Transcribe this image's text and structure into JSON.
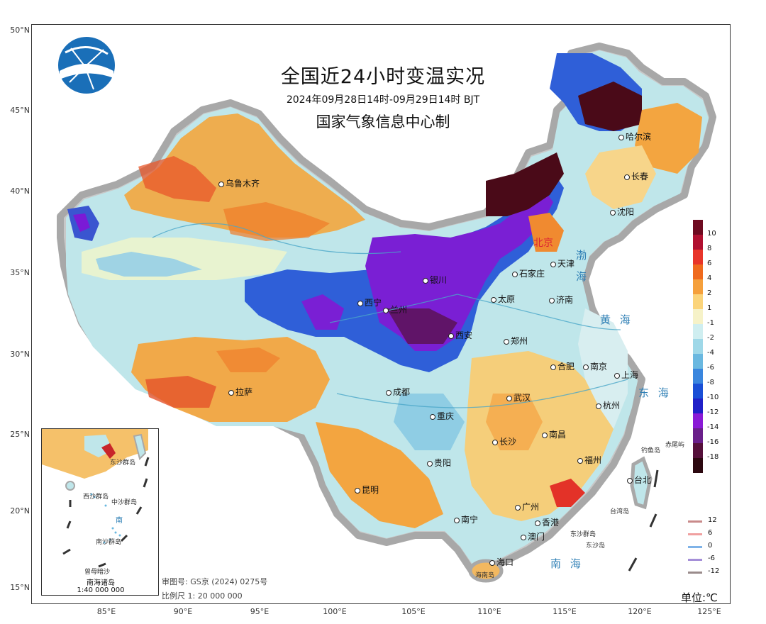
{
  "title": "全国近24小时变温实况",
  "subtitle": "2024年09月28日14时-09月29日14时  BJT",
  "issuer": "国家气象信息中心制",
  "unit_label": "单位:℃",
  "approval_number": "审图号: GS京 (2024) 0275号",
  "scale_text": "比例尺 1: 20 000 000",
  "inset": {
    "title": "南海诸岛",
    "scale": "1:40 000 000",
    "labels": [
      "东沙群岛",
      "西沙群岛",
      "中沙群岛",
      "南沙群岛",
      "曾母暗沙",
      "南"
    ]
  },
  "latitude_labels": [
    "50°N",
    "45°N",
    "40°N",
    "35°N",
    "30°N",
    "25°N",
    "20°N",
    "15°N"
  ],
  "longitude_labels": [
    "85°E",
    "90°E",
    "95°E",
    "100°E",
    "105°E",
    "110°E",
    "115°E",
    "120°E",
    "125°E"
  ],
  "cities": [
    "乌鲁木齐",
    "哈尔滨",
    "长春",
    "沈阳",
    "北京",
    "天津",
    "石家庄",
    "太原",
    "济南",
    "西宁",
    "银川",
    "兰州",
    "西安",
    "郑州",
    "合肥",
    "南京",
    "上海",
    "杭州",
    "武汉",
    "成都",
    "重庆",
    "拉萨",
    "长沙",
    "南昌",
    "贵阳",
    "福州",
    "台北",
    "昆明",
    "南宁",
    "广州",
    "香港",
    "澳门",
    "海口"
  ],
  "seas": [
    "渤",
    "海",
    "黄  海",
    "东  海",
    "南  海"
  ],
  "islands": [
    "钓鱼岛",
    "赤尾屿",
    "台湾岛",
    "东沙群岛",
    "东沙岛",
    "海南岛"
  ],
  "colorbar": {
    "labels": [
      "10",
      "8",
      "6",
      "4",
      "2",
      "1",
      "-1",
      "-2",
      "-4",
      "-6",
      "-8",
      "-10",
      "-12",
      "-14",
      "-16",
      "-18"
    ],
    "colors": [
      "#6e0a20",
      "#b01030",
      "#e8352a",
      "#ef6a1e",
      "#f5a03c",
      "#fbd47a",
      "#f6f2c8",
      "#cfeef0",
      "#9fd8e8",
      "#6ab8e0",
      "#3a86de",
      "#1a4fd6",
      "#2020c8",
      "#8a1ad6",
      "#6a1f8a",
      "#55103a",
      "#2c0810"
    ]
  },
  "contour_legend": [
    {
      "label": "12",
      "color": "#c98a8a"
    },
    {
      "label": "6",
      "color": "#f0a0a0"
    },
    {
      "label": "0",
      "color": "#7fb3e8"
    },
    {
      "label": "-6",
      "color": "#a58fd8"
    },
    {
      "label": "-12",
      "color": "#9a8b8b"
    }
  ]
}
